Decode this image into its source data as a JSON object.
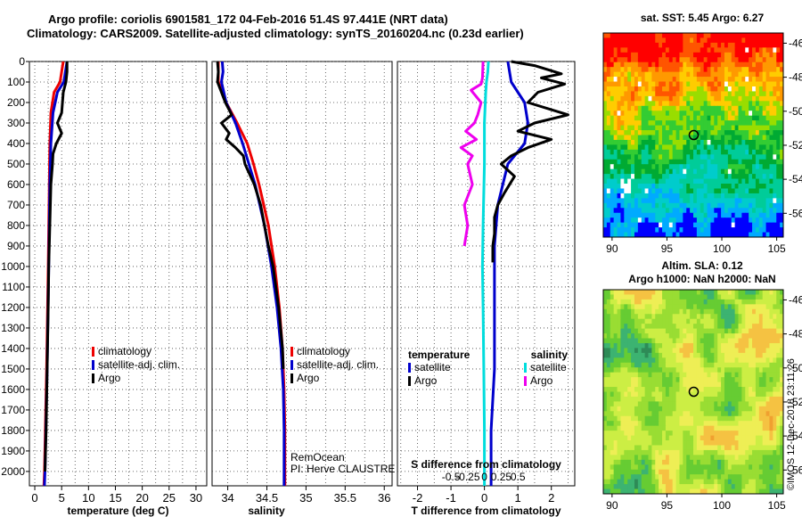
{
  "header": {
    "line1": "Argo profile: coriolis 6901581_172 04-Feb-2016 51.4S 97.441E (NRT data)",
    "line2": "Climatology: CARS2009. Satellite-adjusted climatology: synTS_20160204.nc (0.23d earlier)"
  },
  "colors": {
    "climatology": "#ee0000",
    "satellite_adj": "#0000cc",
    "argo": "#000000",
    "satellite": "#00dddd",
    "argo_salinity_diff": "#ee00ee"
  },
  "chart_data": [
    {
      "type": "line",
      "name": "temperature",
      "xlabel": "temperature (deg C)",
      "xlim": [
        -1,
        32
      ],
      "xticks": [
        0,
        5,
        10,
        15,
        20,
        25,
        30
      ],
      "ylim": [
        2070,
        0
      ],
      "yticks": [
        0,
        100,
        200,
        300,
        400,
        500,
        600,
        700,
        800,
        900,
        1000,
        1100,
        1200,
        1300,
        1400,
        1500,
        1600,
        1700,
        1800,
        1900,
        2000
      ],
      "legend": [
        "climatology",
        "satellite-adj. clim.",
        "Argo"
      ],
      "series": [
        {
          "name": "climatology",
          "color": "#ee0000",
          "depth": [
            0,
            100,
            150,
            250,
            400,
            600,
            1000,
            1500,
            2000,
            2070
          ],
          "values": [
            5.3,
            4.7,
            3.6,
            3.0,
            2.8,
            2.7,
            2.5,
            2.2,
            1.8,
            1.7
          ]
        },
        {
          "name": "satellite-adj. clim.",
          "color": "#0000cc",
          "depth": [
            0,
            100,
            150,
            250,
            400,
            600,
            1000,
            1500,
            2000,
            2070
          ],
          "values": [
            6.0,
            5.4,
            4.2,
            3.4,
            3.0,
            2.8,
            2.6,
            2.3,
            1.9,
            1.8
          ]
        },
        {
          "name": "Argo",
          "color": "#000000",
          "depth": [
            0,
            50,
            100,
            150,
            250,
            300,
            350,
            400,
            450,
            500,
            600,
            800,
            1000,
            1200,
            1500,
            1800,
            2000
          ],
          "values": [
            6.0,
            6.0,
            5.8,
            5.3,
            5.0,
            4.2,
            5.0,
            4.0,
            3.4,
            3.3,
            3.0,
            2.8,
            2.6,
            2.5,
            2.3,
            2.1,
            1.9
          ]
        }
      ]
    },
    {
      "type": "line",
      "name": "salinity",
      "xlabel": "salinity",
      "xlim": [
        33.8,
        36.1
      ],
      "xticks": [
        34,
        34.5,
        35,
        35.5,
        36
      ],
      "xticklabels": [
        "34",
        "34.5",
        "35",
        "35.5",
        "36"
      ],
      "ylim": [
        2070,
        0
      ],
      "legend": [
        "climatology",
        "satellite-adj. clim.",
        "Argo"
      ],
      "annotation": [
        "RemOcean",
        "PI: Herve CLAUSTRE"
      ],
      "series": [
        {
          "name": "climatology",
          "color": "#ee0000",
          "depth": [
            0,
            100,
            200,
            300,
            400,
            500,
            600,
            700,
            800,
            1000,
            1200,
            1400,
            1600,
            1800,
            2000,
            2070
          ],
          "values": [
            33.88,
            33.88,
            33.98,
            34.12,
            34.25,
            34.33,
            34.4,
            34.46,
            34.52,
            34.6,
            34.66,
            34.7,
            34.72,
            34.73,
            34.73,
            34.73
          ]
        },
        {
          "name": "satellite-adj. clim.",
          "color": "#0000cc",
          "depth": [
            0,
            50,
            100,
            200,
            300,
            400,
            500,
            600,
            700,
            800,
            1000,
            1200,
            1400,
            1600,
            1800,
            2000,
            2070
          ],
          "values": [
            33.93,
            33.94,
            33.92,
            33.98,
            34.1,
            34.19,
            34.27,
            34.35,
            34.41,
            34.47,
            34.56,
            34.63,
            34.68,
            34.71,
            34.72,
            34.72,
            34.72
          ]
        },
        {
          "name": "Argo",
          "color": "#000000",
          "depth": [
            0,
            50,
            100,
            200,
            260,
            300,
            350,
            380,
            420,
            460,
            500,
            600,
            700,
            800,
            900,
            1000,
            1200,
            1400,
            1500
          ],
          "values": [
            33.87,
            33.88,
            33.87,
            33.97,
            34.05,
            33.92,
            34.02,
            33.98,
            34.1,
            34.2,
            34.22,
            34.34,
            34.42,
            34.47,
            34.52,
            34.58,
            34.65,
            34.7,
            34.71
          ]
        }
      ]
    },
    {
      "type": "line",
      "name": "difference",
      "xlabel": "T difference from climatology",
      "x2label": "S difference from climatology",
      "xlim": [
        -2.6,
        2.7
      ],
      "xticks": [
        -2,
        -1,
        0,
        1,
        2
      ],
      "x2ticks": [
        -0.5,
        -0.25,
        0,
        0.25,
        0.5
      ],
      "x2ticklabels": [
        "-0.5",
        "-0.25",
        "0",
        "0.25",
        "0.5"
      ],
      "ylim": [
        2070,
        0
      ],
      "legend_left_title": "temperature",
      "legend_right_title": "salinity",
      "legend": [
        "satellite",
        "Argo"
      ],
      "series": [
        {
          "name": "T satellite",
          "color": "#0000cc",
          "depth": [
            0,
            100,
            200,
            300,
            400,
            500,
            700,
            900,
            1000,
            1200,
            1500,
            1800,
            2000,
            2070
          ],
          "values": [
            0.7,
            0.8,
            1.2,
            1.3,
            1.2,
            0.7,
            0.4,
            0.3,
            0.3,
            0.3,
            0.3,
            0.2,
            0.2,
            0.2
          ]
        },
        {
          "name": "T Argo",
          "color": "#000000",
          "depth": [
            0,
            20,
            60,
            80,
            110,
            150,
            200,
            260,
            300,
            340,
            380,
            420,
            460,
            500,
            560,
            640,
            700,
            760,
            840,
            900,
            980
          ],
          "values": [
            0.8,
            1.5,
            2.3,
            1.7,
            2.4,
            1.6,
            1.3,
            2.5,
            1.5,
            1.0,
            2.0,
            1.3,
            0.8,
            0.5,
            0.9,
            0.6,
            0.4,
            0.3,
            0.3,
            0.25,
            0.25
          ]
        },
        {
          "name": "S satellite",
          "color": "#00dddd",
          "depth": [
            0,
            50,
            100,
            150,
            300,
            500,
            800,
            1000,
            1200,
            1500,
            1800,
            2000,
            2070
          ],
          "values": [
            0.06,
            0.05,
            0.03,
            0.02,
            0.0,
            0.0,
            -0.02,
            -0.03,
            -0.02,
            -0.01,
            0.0,
            0.0,
            0.0
          ],
          "scale": 2.0
        },
        {
          "name": "S Argo",
          "color": "#ee00ee",
          "depth": [
            0,
            80,
            110,
            140,
            200,
            260,
            300,
            340,
            380,
            420,
            460,
            500,
            600,
            700,
            800,
            900
          ],
          "values": [
            -0.02,
            -0.03,
            -0.05,
            -0.2,
            -0.05,
            -0.1,
            -0.15,
            -0.28,
            -0.12,
            -0.35,
            -0.18,
            -0.25,
            -0.18,
            -0.3,
            -0.25,
            -0.3
          ],
          "scale": 2.0
        }
      ]
    },
    {
      "type": "heatmap",
      "name": "sst-map",
      "title": "sat. SST: 5.45 Argo: 6.27",
      "xticks": [
        90,
        95,
        100,
        105
      ],
      "yticks": [
        -46,
        -48,
        -50,
        -52,
        -54,
        -56
      ],
      "xlim": [
        89.2,
        105.6
      ],
      "ylim": [
        -57.4,
        -45.4
      ],
      "marker": {
        "lon": 97.44,
        "lat": -51.4
      }
    },
    {
      "type": "heatmap",
      "name": "sla-map",
      "title": "Altim. SLA: 0.12",
      "subtitle": "Argo h1000: NaN h2000: NaN",
      "xticks": [
        90,
        95,
        100,
        105
      ],
      "yticks": [
        -46,
        -48,
        -50,
        -52,
        -54,
        -56
      ],
      "xlim": [
        89.2,
        105.6
      ],
      "ylim": [
        -57.4,
        -45.4
      ],
      "marker": {
        "lon": 97.44,
        "lat": -51.4
      }
    }
  ],
  "watermark": "©IMOS 12-Dec-2018 23:11:26"
}
